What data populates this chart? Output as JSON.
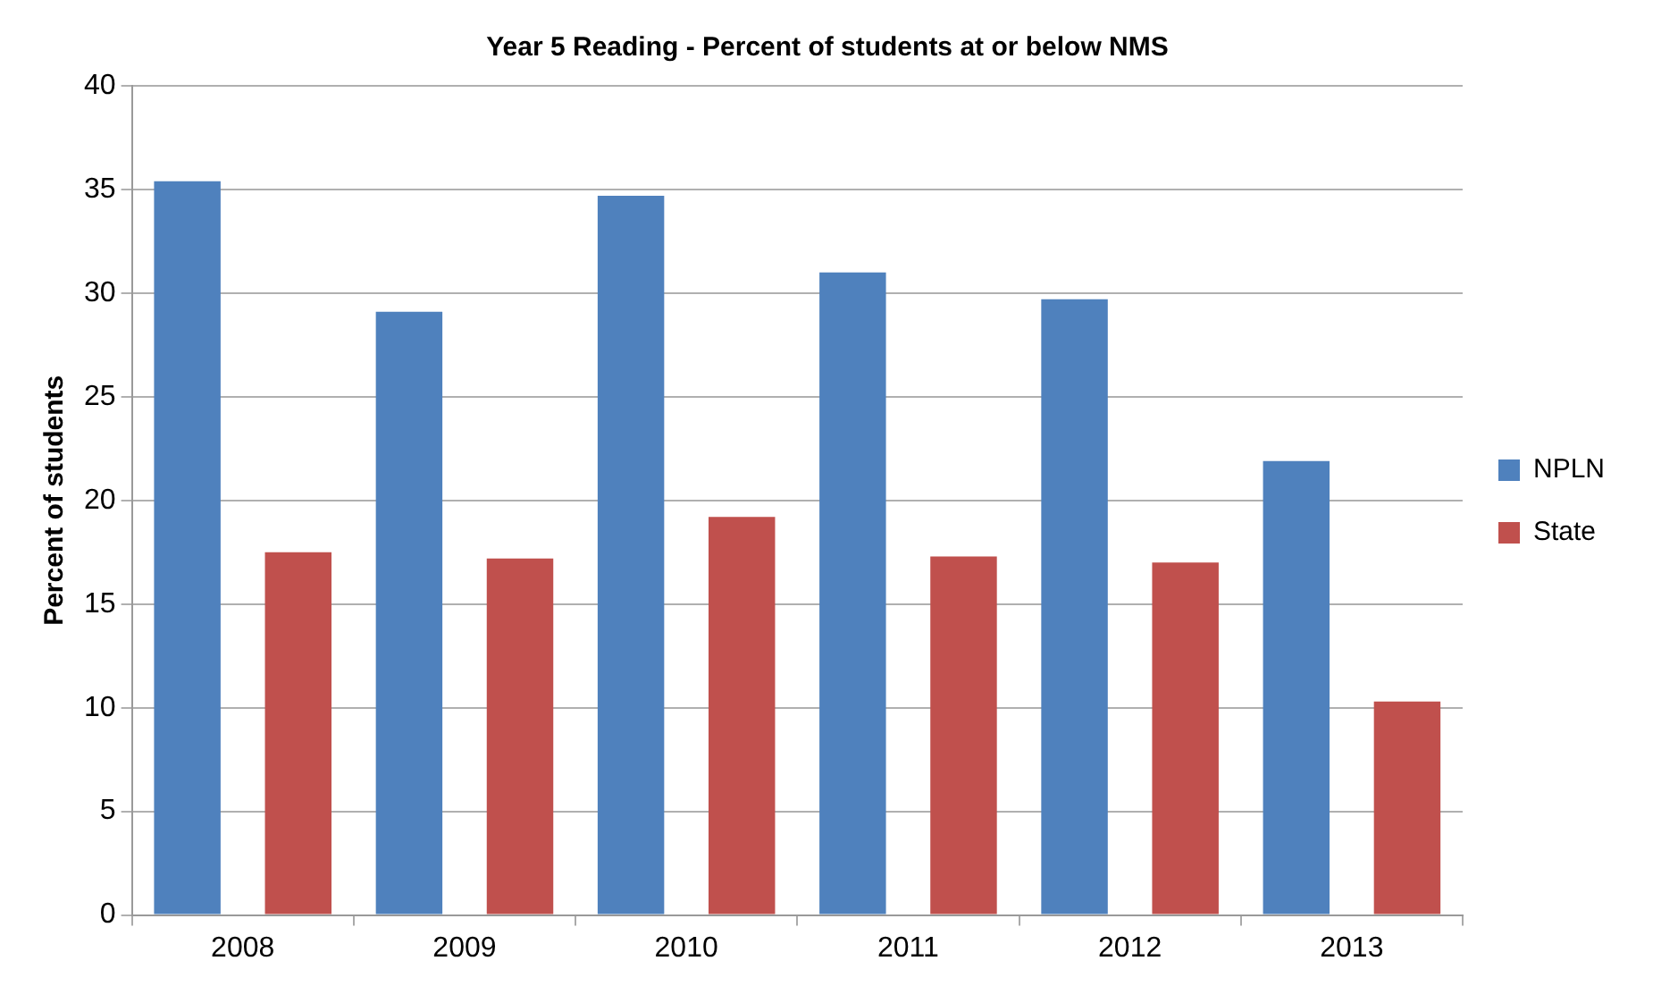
{
  "chart_data": {
    "type": "bar",
    "title": "Year 5 Reading - Percent of students at or below NMS",
    "ylabel": "Percent of students",
    "categories": [
      "2008",
      "2009",
      "2010",
      "2011",
      "2012",
      "2013"
    ],
    "series": [
      {
        "name": "NPLN",
        "color": "#4f81bd",
        "values": [
          35.4,
          29.1,
          34.7,
          31.0,
          29.7,
          21.9
        ]
      },
      {
        "name": "State",
        "color": "#c0504d",
        "values": [
          17.5,
          17.2,
          19.2,
          17.3,
          17.0,
          10.3
        ]
      }
    ],
    "ylim": [
      0,
      40
    ],
    "yticks": [
      0,
      5,
      10,
      15,
      20,
      25,
      30,
      35,
      40
    ],
    "grid": "y",
    "legend": "right"
  }
}
